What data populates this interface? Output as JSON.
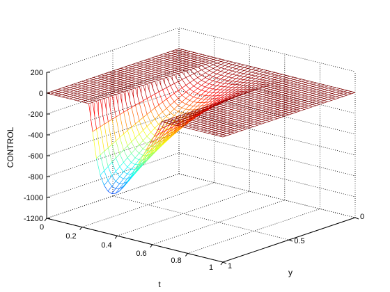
{
  "chart_data": {
    "type": "surface",
    "zlabel": "CONTROL",
    "xlabel": "t",
    "ylabel": "y",
    "z_ticks": [
      "200",
      "0",
      "-200",
      "-400",
      "-600",
      "-800",
      "-1000",
      "-1200"
    ],
    "t_ticks": [
      "0",
      "0.2",
      "0.4",
      "0.6",
      "0.8",
      "1"
    ],
    "y_ticks": [
      "0",
      "0.5",
      "1"
    ],
    "zlim": [
      -1200,
      200
    ],
    "tlim": [
      0,
      1
    ],
    "ylim": [
      0,
      1
    ],
    "grid": true,
    "mesh": true,
    "colormap": "jet",
    "surface": {
      "plateau_value": 0,
      "active_t_range": [
        0.25,
        0.65
      ],
      "min_value": -1000,
      "min_at": {
        "t": 0.3,
        "y": 1.0
      },
      "profile": "negative dip strongest near y=1 at early t, rising to 0 near y=0 and late t"
    },
    "colors": {
      "plateau": "#800000",
      "grid": "#000000",
      "axes": "#000000"
    }
  }
}
